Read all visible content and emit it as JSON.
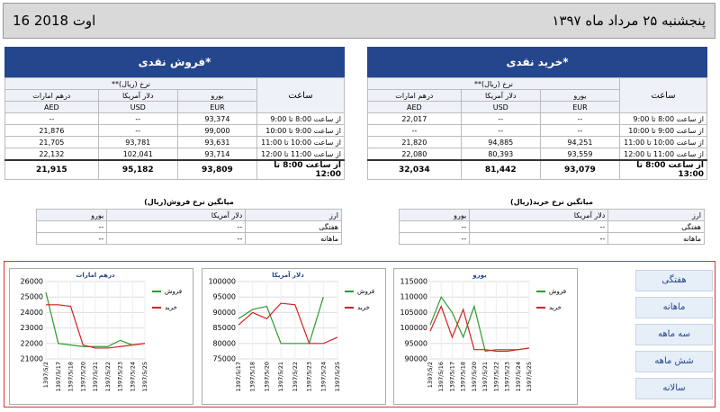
{
  "header": {
    "date_fa": "پنجشنبه ۲۵ مرداد ماه ۱۳۹۷",
    "date_en": "16 اوت 2018"
  },
  "sell_table": {
    "title": "فروش نقدی*",
    "time_header": "ساعت",
    "rate_header": "نرخ (ریال)**",
    "currencies": [
      "یورو",
      "دلار آمریکا",
      "درهم امارات"
    ],
    "codes": [
      "EUR",
      "USD",
      "AED"
    ],
    "rows": [
      [
        "از ساعت 8:00 تا 9:00",
        "93,374",
        "--",
        "--"
      ],
      [
        "از ساعت 9:00 تا 10:00",
        "99,000",
        "--",
        "21,876"
      ],
      [
        "از ساعت 10:00 تا 11:00",
        "93,631",
        "93,781",
        "21,705"
      ],
      [
        "از ساعت 11:00 تا 12:00",
        "93,714",
        "102,041",
        "22,132"
      ],
      [
        "از ساعت 8:00 تا 12:00",
        "93,809",
        "95,182",
        "21,915"
      ]
    ]
  },
  "buy_table": {
    "title": "خرید نقدی*",
    "time_header": "ساعت",
    "rate_header": "نرخ (ریال)**",
    "currencies": [
      "یورو",
      "دلار آمریکا",
      "درهم امارات"
    ],
    "codes": [
      "EUR",
      "USD",
      "AED"
    ],
    "rows": [
      [
        "از ساعت 8:00 تا 9:00",
        "--",
        "--",
        "22,017"
      ],
      [
        "از ساعت 9:00 تا 10:00",
        "--",
        "--",
        "--"
      ],
      [
        "از ساعت 10:00 تا 11:00",
        "94,251",
        "94,885",
        "21,820"
      ],
      [
        "از ساعت 11:00 تا 12:00",
        "93,559",
        "80,393",
        "22,080"
      ],
      [
        "از ساعت 8:00 تا 13:00",
        "93,079",
        "81,442",
        "32,034"
      ]
    ]
  },
  "avg_sell": {
    "title": "میانگین نرخ فروش(ریال)",
    "headers": [
      "ارز",
      "دلار آمریکا",
      "یورو"
    ],
    "rows": [
      [
        "هفتگی",
        "--",
        "--"
      ],
      [
        "ماهانه",
        "--",
        "--"
      ]
    ]
  },
  "avg_buy": {
    "title": "میانگین نرخ خرید(ریال)",
    "headers": [
      "ارز",
      "دلار آمریکا",
      "یورو"
    ],
    "rows": [
      [
        "هفتگی",
        "--",
        "--"
      ],
      [
        "ماهانه",
        "--",
        "--"
      ]
    ]
  },
  "buttons": [
    "هفتگی",
    "ماهانه",
    "سه ماهه",
    "شش ماهه",
    "سالانه"
  ],
  "chart_data": [
    {
      "type": "line",
      "title": "درهم امارات",
      "categories": [
        "1397/5/2",
        "1397/5/17",
        "1397/5/18",
        "1397/5/20",
        "1397/5/21",
        "1397/5/22",
        "1397/5/23",
        "1397/5/24",
        "1397/5/25"
      ],
      "ylim": [
        21000,
        26000
      ],
      "yticks": [
        21000,
        22000,
        23000,
        24000,
        25000,
        26000
      ],
      "grid": true,
      "series": [
        {
          "name": "فروش",
          "color": "#2e9a2e",
          "values": [
            25300,
            22000,
            21900,
            21800,
            21800,
            21800,
            22200,
            21900,
            22000
          ]
        },
        {
          "name": "خرید",
          "color": "#d42020",
          "values": [
            24500,
            24500,
            24400,
            21900,
            21700,
            21700,
            21800,
            21900,
            22000
          ]
        }
      ]
    },
    {
      "type": "line",
      "title": "دلار آمریکا",
      "categories": [
        "1397/5/17",
        "1397/5/18",
        "1397/5/20",
        "1397/5/21",
        "1397/5/22",
        "1397/5/23",
        "1397/5/24",
        "1397/5/25"
      ],
      "ylim": [
        75000,
        100000
      ],
      "yticks": [
        75000,
        80000,
        85000,
        90000,
        95000,
        100000
      ],
      "grid": true,
      "series": [
        {
          "name": "فروش",
          "color": "#2e9a2e",
          "values": [
            88000,
            91000,
            92000,
            80000,
            80000,
            80000,
            95000,
            null
          ]
        },
        {
          "name": "خرید",
          "color": "#d42020",
          "values": [
            86000,
            90000,
            88000,
            93000,
            92500,
            80000,
            80000,
            82000
          ]
        }
      ]
    },
    {
      "type": "line",
      "title": "یورو",
      "categories": [
        "1397/5/2",
        "1397/5/16",
        "1397/5/17",
        "1397/5/18",
        "1397/5/20",
        "1397/5/21",
        "1397/5/22",
        "1397/5/23",
        "1397/5/24",
        "1397/5/25"
      ],
      "ylim": [
        90000,
        115000
      ],
      "yticks": [
        90000,
        95000,
        100000,
        105000,
        110000,
        115000
      ],
      "grid": true,
      "series": [
        {
          "name": "فروش",
          "color": "#2e9a2e",
          "values": [
            101000,
            110000,
            105000,
            97000,
            107000,
            92500,
            93000,
            93000,
            93000,
            93500
          ]
        },
        {
          "name": "خرید",
          "color": "#d42020",
          "values": [
            99000,
            107000,
            97000,
            106000,
            93000,
            93000,
            92500,
            92500,
            93000,
            93500
          ]
        }
      ]
    }
  ]
}
